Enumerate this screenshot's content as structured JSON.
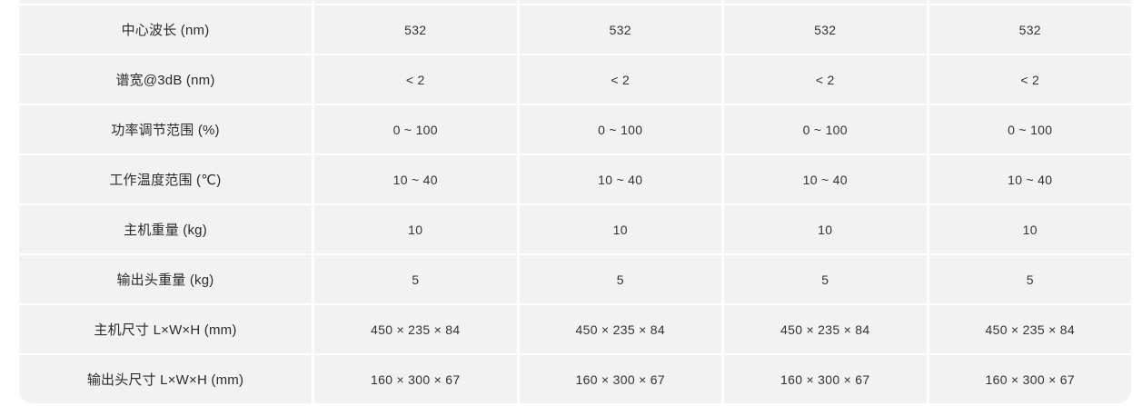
{
  "table": {
    "columns_count": 5,
    "rows": [
      {
        "label": "中心波长 (nm)",
        "values": [
          "532",
          "532",
          "532",
          "532"
        ]
      },
      {
        "label": "谱宽@3dB (nm)",
        "values": [
          "< 2",
          "< 2",
          "< 2",
          "< 2"
        ]
      },
      {
        "label": "功率调节范围 (%)",
        "values": [
          "0 ~ 100",
          "0 ~ 100",
          "0 ~ 100",
          "0 ~ 100"
        ]
      },
      {
        "label": "工作温度范围 (℃)",
        "values": [
          "10 ~ 40",
          "10 ~ 40",
          "10 ~ 40",
          "10 ~ 40"
        ]
      },
      {
        "label": "主机重量 (kg)",
        "values": [
          "10",
          "10",
          "10",
          "10"
        ]
      },
      {
        "label": "输出头重量 (kg)",
        "values": [
          "5",
          "5",
          "5",
          "5"
        ]
      },
      {
        "label": "主机尺寸 L×W×H (mm)",
        "values": [
          "450 × 235 × 84",
          "450 × 235 × 84",
          "450 × 235 × 84",
          "450 × 235 × 84"
        ]
      },
      {
        "label": "输出头尺寸 L×W×H (mm)",
        "values": [
          "160 × 300 × 67",
          "160 × 300 × 67",
          "160 × 300 × 67",
          "160 × 300 × 67"
        ]
      }
    ],
    "colors": {
      "cell_background": "#f2f2f2",
      "gutter": "#ffffff",
      "label_text": "#2b2b2b",
      "value_text": "#333333",
      "page_background": "#ffffff"
    }
  }
}
